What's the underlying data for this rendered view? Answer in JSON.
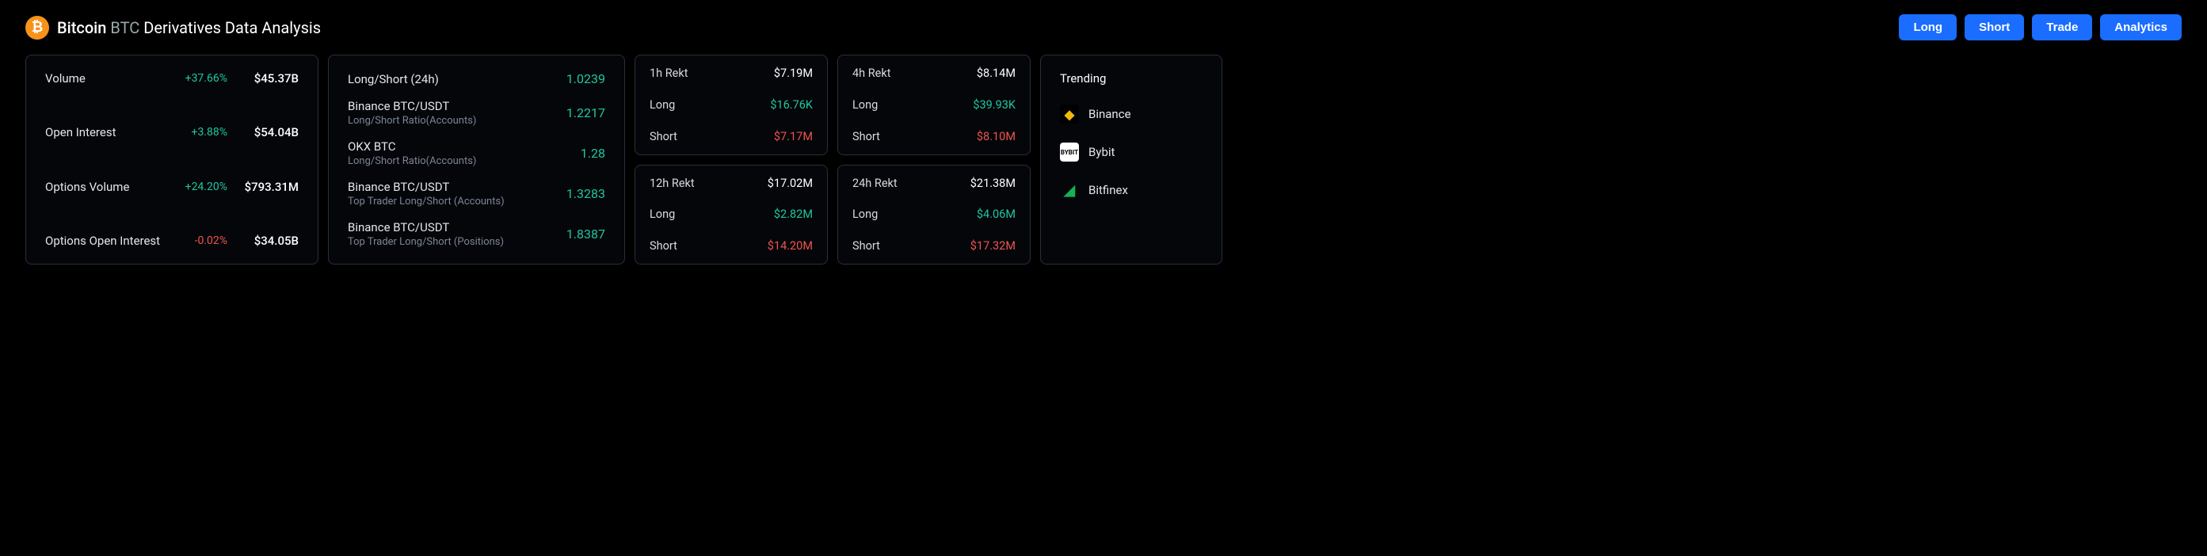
{
  "header": {
    "coin_name": "Bitcoin",
    "coin_symbol": "BTC",
    "title_suffix": "Derivatives Data Analysis",
    "buttons": {
      "long": "Long",
      "short": "Short",
      "trade": "Trade",
      "analytics": "Analytics"
    },
    "button_bg": "#1a6dff"
  },
  "stats": [
    {
      "label": "Volume",
      "change": "+37.66%",
      "change_positive": true,
      "value": "$45.37B"
    },
    {
      "label": "Open Interest",
      "change": "+3.88%",
      "change_positive": true,
      "value": "$54.04B"
    },
    {
      "label": "Options Volume",
      "change": "+24.20%",
      "change_positive": true,
      "value": "$793.31M"
    },
    {
      "label": "Options Open Interest",
      "change": "-0.02%",
      "change_positive": false,
      "value": "$34.05B"
    }
  ],
  "longshort": [
    {
      "title": "Long/Short (24h)",
      "sub": "",
      "value": "1.0239"
    },
    {
      "title": "Binance BTC/USDT",
      "sub": "Long/Short Ratio(Accounts)",
      "value": "1.2217"
    },
    {
      "title": "OKX BTC",
      "sub": "Long/Short Ratio(Accounts)",
      "value": "1.28"
    },
    {
      "title": "Binance BTC/USDT",
      "sub": "Top Trader Long/Short (Accounts)",
      "value": "1.3283"
    },
    {
      "title": "Binance BTC/USDT",
      "sub": "Top Trader Long/Short (Positions)",
      "value": "1.8387"
    }
  ],
  "rekt": {
    "groups": [
      [
        {
          "title": "1h Rekt",
          "total": "$7.19M",
          "long": "$16.76K",
          "short": "$7.17M"
        },
        {
          "title": "4h Rekt",
          "total": "$8.14M",
          "long": "$39.93K",
          "short": "$8.10M"
        }
      ],
      [
        {
          "title": "12h Rekt",
          "total": "$17.02M",
          "long": "$2.82M",
          "short": "$14.20M"
        },
        {
          "title": "24h Rekt",
          "total": "$21.38M",
          "long": "$4.06M",
          "short": "$17.32M"
        }
      ]
    ],
    "labels": {
      "long": "Long",
      "short": "Short"
    }
  },
  "trending": {
    "heading": "Trending",
    "items": [
      {
        "name": "Binance",
        "icon_bg": "#000000",
        "icon_fg": "#f0b90b",
        "icon_glyph": "◆"
      },
      {
        "name": "Bybit",
        "icon_bg": "#ffffff",
        "icon_fg": "#000000",
        "icon_glyph": "BY"
      },
      {
        "name": "Bitfinex",
        "icon_bg": "transparent",
        "icon_fg": "#16b157",
        "icon_glyph": "◢"
      }
    ]
  },
  "colors": {
    "positive": "#1fc7a0",
    "negative": "#f0544f",
    "background": "#000000",
    "card_border": "#2a2f3a"
  }
}
